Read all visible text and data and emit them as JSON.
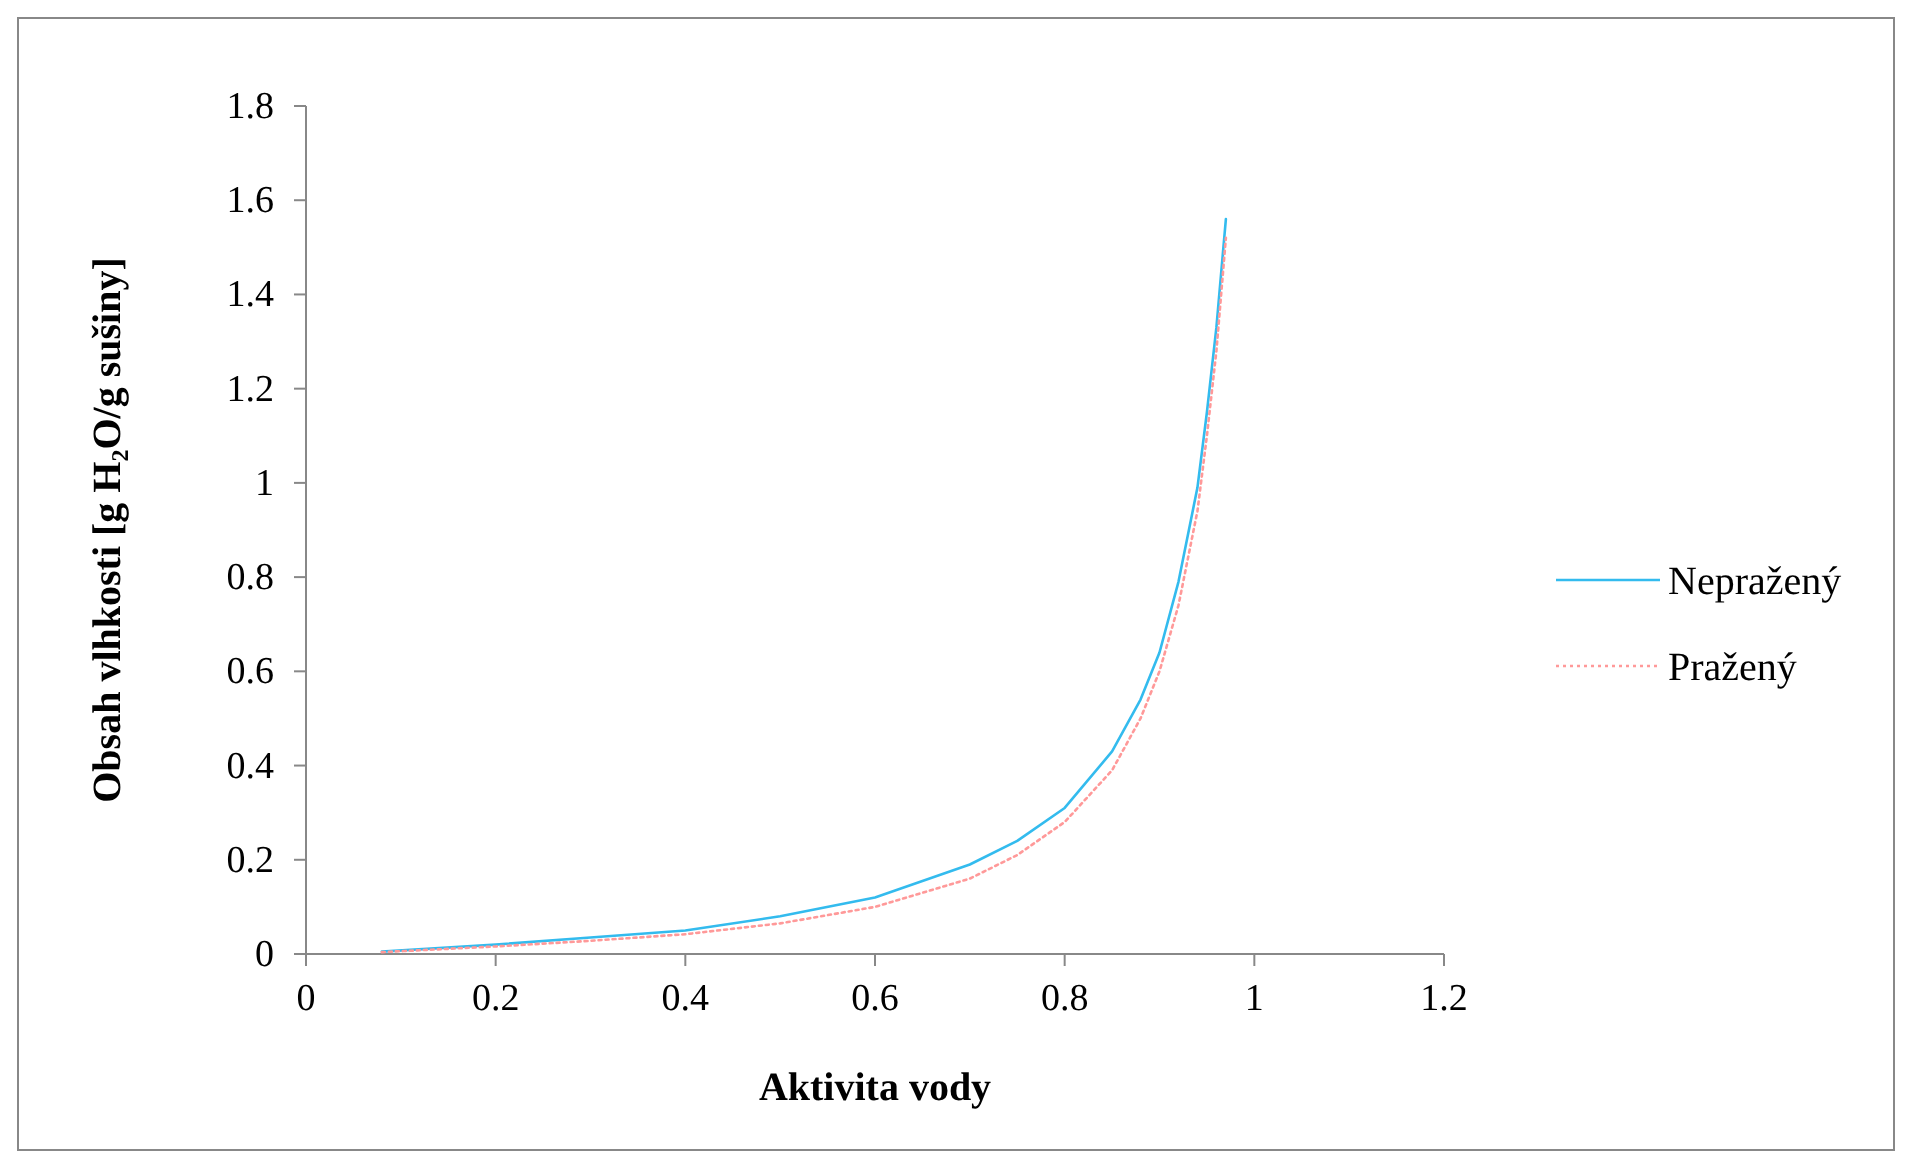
{
  "chart_data": {
    "type": "line",
    "xlabel": "Aktivita vody",
    "ylabel": "Obsah vlhkosti [g H₂O/g sušiny]",
    "xlim": [
      0,
      1.2
    ],
    "ylim": [
      0,
      1.8
    ],
    "xticks": [
      0,
      0.2,
      0.4,
      0.6,
      0.8,
      1,
      1.2
    ],
    "yticks": [
      0,
      0.2,
      0.4,
      0.6,
      0.8,
      1,
      1.2,
      1.4,
      1.6,
      1.8
    ],
    "grid": false,
    "legend": "right",
    "marker": "none",
    "x": [
      0.08,
      0.2,
      0.3,
      0.4,
      0.5,
      0.6,
      0.7,
      0.75,
      0.8,
      0.85,
      0.88,
      0.9,
      0.92,
      0.94,
      0.95,
      0.96,
      0.97
    ],
    "series": [
      {
        "name": "Nepražený",
        "color": "#33bbee",
        "line_style": "solid",
        "values": [
          0.005,
          0.02,
          0.035,
          0.05,
          0.08,
          0.12,
          0.19,
          0.24,
          0.31,
          0.43,
          0.54,
          0.64,
          0.79,
          0.99,
          1.15,
          1.33,
          1.56
        ]
      },
      {
        "name": "Pražený",
        "color": "#ff9999",
        "line_style": "dotted",
        "values": [
          0.004,
          0.016,
          0.028,
          0.042,
          0.065,
          0.1,
          0.16,
          0.21,
          0.28,
          0.39,
          0.5,
          0.6,
          0.74,
          0.94,
          1.1,
          1.28,
          1.52
        ]
      }
    ]
  }
}
